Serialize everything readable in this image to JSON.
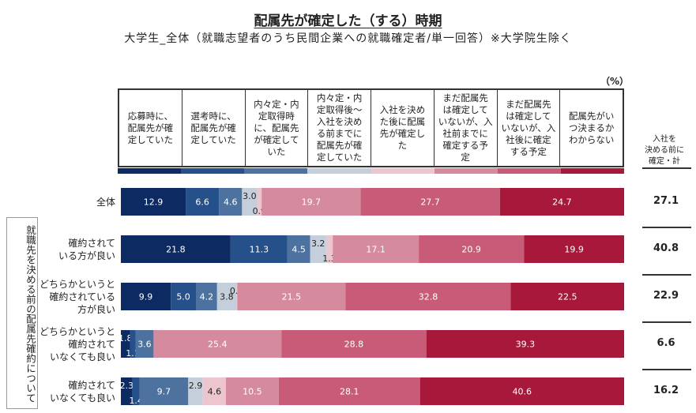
{
  "header": {
    "title": "配属先が確定した（する）時期",
    "subtitle": "大学生_全体（就職志望者のうち民間企業への就職確定者/単一回答）※大学院生除く",
    "unit": "（%）"
  },
  "chart_data": {
    "type": "bar",
    "orientation": "horizontal-stacked-100",
    "title": "配属先が確定した（する）時期",
    "subtitle": "大学生_全体（就職志望者のうち民間企業への就職確定者/単一回答）※大学院生除く",
    "unit": "%",
    "xlim": [
      0,
      100
    ],
    "legend_position": "top",
    "group_label": "就職先を決める前の配属先確約について",
    "categories": [
      "全体",
      "確約されている方が良い",
      "どちらかというと確約されている方が良い",
      "どちらかというと確約されていなくても良い",
      "確約されていなくても良い"
    ],
    "category_display": [
      "全体",
      "確約されて\nいる方が良い",
      "どちらかというと\n確約されている\n方が良い",
      "どちらかというと\n確約されて\nいなくても良い",
      "確約されて\nいなくても良い"
    ],
    "series": [
      {
        "name": "応募時に、配属先が確定していた",
        "display": "応募時に、\n配属先が確\n定していた",
        "color": "#0d2a63",
        "values": [
          12.9,
          21.8,
          9.9,
          1.8,
          2.3
        ],
        "labels": [
          "12.9",
          "21.8",
          "9.9",
          "1.8",
          "2.3"
        ]
      },
      {
        "name": "選考時に、配属先が確定していた",
        "display": "選考時に、\n配属先が確\n定していた",
        "color": "#26508a",
        "values": [
          6.6,
          11.3,
          5.0,
          1.1,
          1.4
        ],
        "labels": [
          "6.6",
          "11.3",
          "5.0",
          "1.1",
          "1.4"
        ]
      },
      {
        "name": "内々定・内定取得時に、配属先が確定していた",
        "display": "内々定・内\n定取得時\nに、配属先\nが確定して\nいた",
        "color": "#4e72a0",
        "values": [
          4.6,
          4.5,
          4.2,
          3.6,
          9.7
        ],
        "labels": [
          "4.6",
          "4.5",
          "4.2",
          "3.6",
          "9.7"
        ]
      },
      {
        "name": "内々定・内定取得後～入社を決める前までに配属先が確定していた",
        "display": "内々定・内\n定取得後～\n入社を決め\nる前までに\n配属先が確\n定していた",
        "color": "#c5cfdc",
        "values": [
          3.0,
          3.2,
          3.8,
          0,
          2.9
        ],
        "labels": [
          "3.0",
          "3.2",
          "3.8",
          "－",
          "2.9"
        ]
      },
      {
        "name": "入社を決めた後に配属先が確定した",
        "display": "入社を決め\nた後に配属\n先が確定し\nた",
        "color": "#ecc5cf",
        "values": [
          0.9,
          1.3,
          0.2,
          0,
          4.6
        ],
        "labels": [
          "0.9",
          "1.3",
          "0.2",
          "－",
          "4.6"
        ]
      },
      {
        "name": "まだ配属先は確定していないが、入社前までに確定する予定",
        "display": "まだ配属先\nは確定して\nいないが、入\n社前までに\n確定する予\n定",
        "color": "#d68a9d",
        "values": [
          19.7,
          17.1,
          21.5,
          25.4,
          10.5
        ],
        "labels": [
          "19.7",
          "17.1",
          "21.5",
          "25.4",
          "10.5"
        ]
      },
      {
        "name": "まだ配属先は確定していないが、入社後に確定する予定",
        "display": "まだ配属先\nは確定して\nいないが、入\n社後に確定\nする予定",
        "color": "#c75b78",
        "values": [
          27.7,
          20.9,
          32.8,
          28.8,
          28.1
        ],
        "labels": [
          "27.7",
          "20.9",
          "32.8",
          "28.8",
          "28.1"
        ]
      },
      {
        "name": "配属先がいつ決まるかわからない",
        "display": "配属先がい\nつ決まるか\nわからない",
        "color": "#a8183a",
        "values": [
          24.7,
          19.9,
          22.5,
          39.3,
          40.6
        ],
        "labels": [
          "24.7",
          "19.9",
          "22.5",
          "39.3",
          "40.6"
        ]
      }
    ],
    "summary_column": {
      "label": "入社を\n決める前に\n確定・計",
      "values": [
        "27.1",
        "40.8",
        "22.9",
        "6.6",
        "16.2"
      ]
    }
  }
}
